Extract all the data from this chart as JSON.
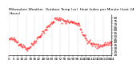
{
  "title": "Milwaukee Weather  Outdoor Temp (vs)  Heat Index per Minute (Last 24 Hours)",
  "background_color": "#ffffff",
  "plot_color": "#ff0000",
  "y_ticks": [
    20,
    25,
    30,
    35,
    40,
    45,
    50,
    55,
    60,
    65,
    70,
    75,
    80
  ],
  "ylim": [
    18,
    85
  ],
  "xlim": [
    0,
    144
  ],
  "x_tick_interval": 6,
  "num_points": 145,
  "title_fontsize": 3.2,
  "tick_fontsize": 3.0,
  "markersize": 0.7,
  "grid_color": "#aaaaaa",
  "grid_alpha": 0.7,
  "grid_linewidth": 0.3
}
